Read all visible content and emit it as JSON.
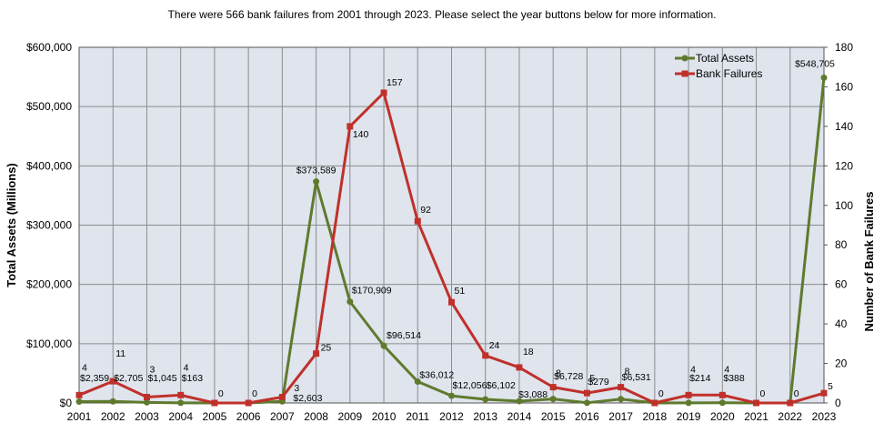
{
  "caption": "There were 566 bank failures from 2001 through 2023. Please select the year buttons below for more information.",
  "colors": {
    "plot_bg": "#dfe4ed",
    "grid": "#8c8c8c",
    "assets": "#5f7a2e",
    "failures": "#c0302b"
  },
  "chart_data": {
    "type": "line",
    "categories": [
      "2001",
      "2002",
      "2003",
      "2004",
      "2005",
      "2006",
      "2007",
      "2008",
      "2009",
      "2010",
      "2011",
      "2012",
      "2013",
      "2014",
      "2015",
      "2016",
      "2017",
      "2018",
      "2019",
      "2020",
      "2021",
      "2022",
      "2023"
    ],
    "ylabel_left": "Total Assets (Millions)",
    "ylabel_right": "Number of Bank Failures",
    "ylim_left": [
      0,
      600000
    ],
    "ylim_right": [
      0,
      180
    ],
    "left_ticks": [
      "$0",
      "$100,000",
      "$200,000",
      "$300,000",
      "$400,000",
      "$500,000",
      "$600,000"
    ],
    "right_ticks": [
      "0",
      "20",
      "40",
      "60",
      "80",
      "100",
      "120",
      "140",
      "160",
      "180"
    ],
    "grid": true,
    "legend_position": "top-right",
    "series": [
      {
        "name": "Total Assets",
        "axis": "left",
        "values": [
          2359,
          2705,
          1045,
          163,
          0,
          0,
          2603,
          373589,
          170909,
          96514,
          36012,
          12056,
          6102,
          3088,
          6728,
          279,
          6531,
          0,
          214,
          388,
          0,
          0,
          548705
        ],
        "labels": [
          "$2,359",
          "$2,705",
          "$1,045",
          "$163",
          "",
          "",
          "$2,603",
          "$373,589",
          "$170,909",
          "$96,514",
          "$36,012",
          "$12,056",
          "$6,102",
          "$3,088",
          "$6,728",
          "$279",
          "$6,531",
          "",
          "$214",
          "$388",
          "",
          "",
          "$548,705"
        ]
      },
      {
        "name": "Bank Failures",
        "axis": "right",
        "values": [
          4,
          11,
          3,
          4,
          0,
          0,
          3,
          25,
          140,
          157,
          92,
          51,
          24,
          18,
          8,
          5,
          8,
          0,
          4,
          4,
          0,
          0,
          5
        ],
        "labels": [
          "4",
          "11",
          "3",
          "4",
          "0",
          "0",
          "3",
          "25",
          "140",
          "157",
          "92",
          "51",
          "24",
          "18",
          "8",
          "5",
          "8",
          "0",
          "4",
          "4",
          "0",
          "0",
          "5"
        ]
      }
    ]
  }
}
